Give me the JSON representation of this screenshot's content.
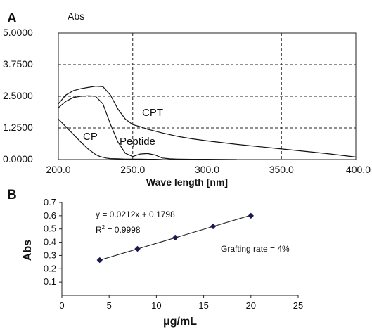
{
  "chart_data": [
    {
      "panel": "A",
      "type": "line",
      "ylabel": "Abs",
      "xlabel": "Wave length [nm]",
      "xlim": [
        200,
        400
      ],
      "ylim": [
        0,
        5
      ],
      "xticks": [
        "200.0",
        "250.0",
        "300.0",
        "350.0",
        "400.0"
      ],
      "yticks": [
        "5.0000",
        "3.7500",
        "2.5000",
        "1.2500",
        "0.0000"
      ],
      "grid": "dashed",
      "series": [
        {
          "name": "CPT",
          "x": [
            200,
            205,
            210,
            215,
            220,
            225,
            230,
            235,
            240,
            245,
            250,
            255,
            260,
            270,
            280,
            290,
            300,
            320,
            340,
            360,
            380,
            400
          ],
          "y": [
            2.2,
            2.55,
            2.72,
            2.8,
            2.85,
            2.9,
            2.88,
            2.55,
            2.0,
            1.6,
            1.38,
            1.3,
            1.2,
            1.05,
            0.92,
            0.82,
            0.74,
            0.6,
            0.48,
            0.36,
            0.24,
            0.1
          ]
        },
        {
          "name": "CP",
          "x": [
            200,
            205,
            210,
            215,
            220,
            225,
            228,
            232,
            235,
            240,
            245,
            250,
            255,
            260,
            265,
            270
          ],
          "y": [
            1.6,
            1.3,
            1.0,
            0.7,
            0.42,
            0.2,
            0.12,
            0.06,
            0.04,
            0.03,
            0.02,
            0.02,
            0.02,
            0.01,
            0.01,
            0.0
          ]
        },
        {
          "name": "Peptide",
          "x": [
            200,
            205,
            210,
            215,
            220,
            225,
            230,
            235,
            240,
            245,
            250,
            255,
            260,
            265,
            270,
            275,
            280,
            290,
            300,
            320
          ],
          "y": [
            2.05,
            2.3,
            2.45,
            2.5,
            2.52,
            2.5,
            2.2,
            1.4,
            0.7,
            0.25,
            0.12,
            0.22,
            0.24,
            0.18,
            0.06,
            0.03,
            0.02,
            0.01,
            0.01,
            0.0
          ]
        }
      ],
      "labels": [
        "CPT",
        "CP",
        "Peptide"
      ]
    },
    {
      "panel": "B",
      "type": "scatter",
      "xlabel": "μg/mL",
      "ylabel": "Abs",
      "xlim": [
        0,
        25
      ],
      "ylim": [
        0,
        0.7
      ],
      "xticks": [
        "0",
        "5",
        "10",
        "15",
        "20",
        "25"
      ],
      "yticks": [
        "0.1",
        "0.2",
        "0.3",
        "0.4",
        "0.5",
        "0.6",
        "0.7"
      ],
      "points": {
        "x": [
          4,
          8,
          12,
          16,
          20
        ],
        "y": [
          0.265,
          0.35,
          0.435,
          0.52,
          0.6
        ]
      },
      "fit": {
        "slope": 0.0212,
        "intercept": 0.1798,
        "x_range": [
          4,
          20
        ]
      },
      "annotations": {
        "equation": "y = 0.0212x + 0.1798",
        "r2_prefix": "R",
        "r2_sup": "2",
        "r2_value": " = 0.9998",
        "grafting": "Grafting rate = 4%"
      },
      "marker_color": "#1a1a4e"
    }
  ]
}
